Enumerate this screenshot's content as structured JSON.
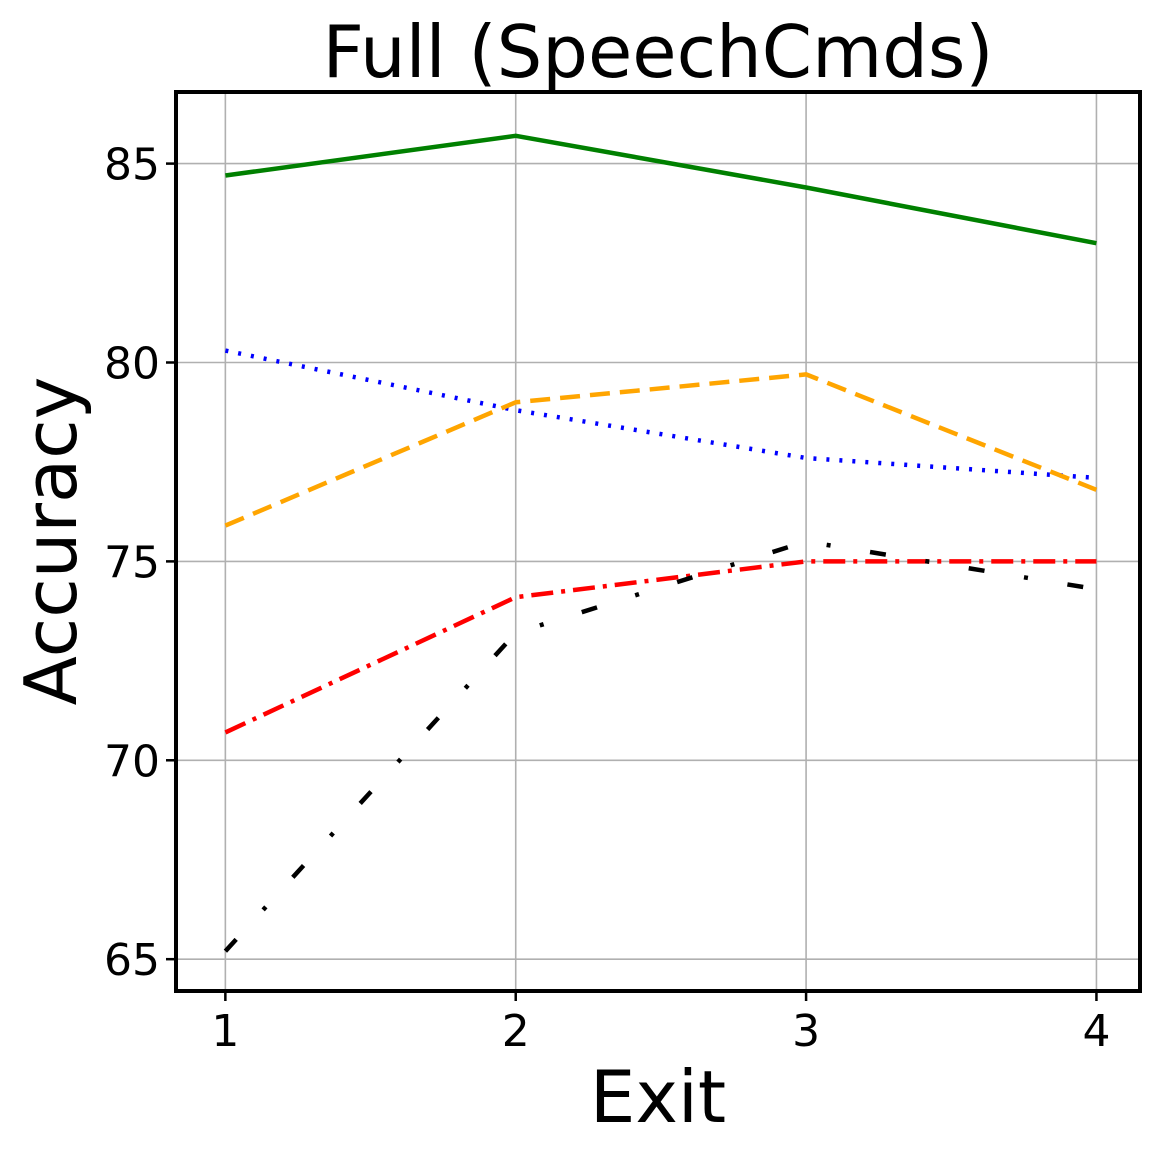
{
  "chart_data": {
    "type": "line",
    "title": "Full (SpeechCmds)",
    "xlabel": "Exit",
    "ylabel": "Accuracy",
    "x": [
      1,
      2,
      3,
      4
    ],
    "xlim": [
      0.83,
      4.15
    ],
    "ylim": [
      64.2,
      86.8
    ],
    "xticks": [
      1,
      2,
      3,
      4
    ],
    "yticks": [
      65,
      70,
      75,
      80,
      85
    ],
    "grid": true,
    "series": [
      {
        "color": "#008000",
        "dash": "solid",
        "values": [
          84.7,
          85.7,
          84.4,
          83.0
        ]
      },
      {
        "color": "#0000ff",
        "dash": "dotted",
        "values": [
          80.3,
          78.8,
          77.6,
          77.1
        ]
      },
      {
        "color": "#ffa500",
        "dash": "dashed",
        "values": [
          75.9,
          79.0,
          79.7,
          76.8
        ]
      },
      {
        "color": "#ff0000",
        "dash": "dashdot",
        "values": [
          70.7,
          74.1,
          75.0,
          75.0
        ]
      },
      {
        "color": "#000000",
        "dash": "loose-dashdot",
        "values": [
          65.2,
          73.2,
          75.5,
          74.3
        ]
      }
    ]
  }
}
